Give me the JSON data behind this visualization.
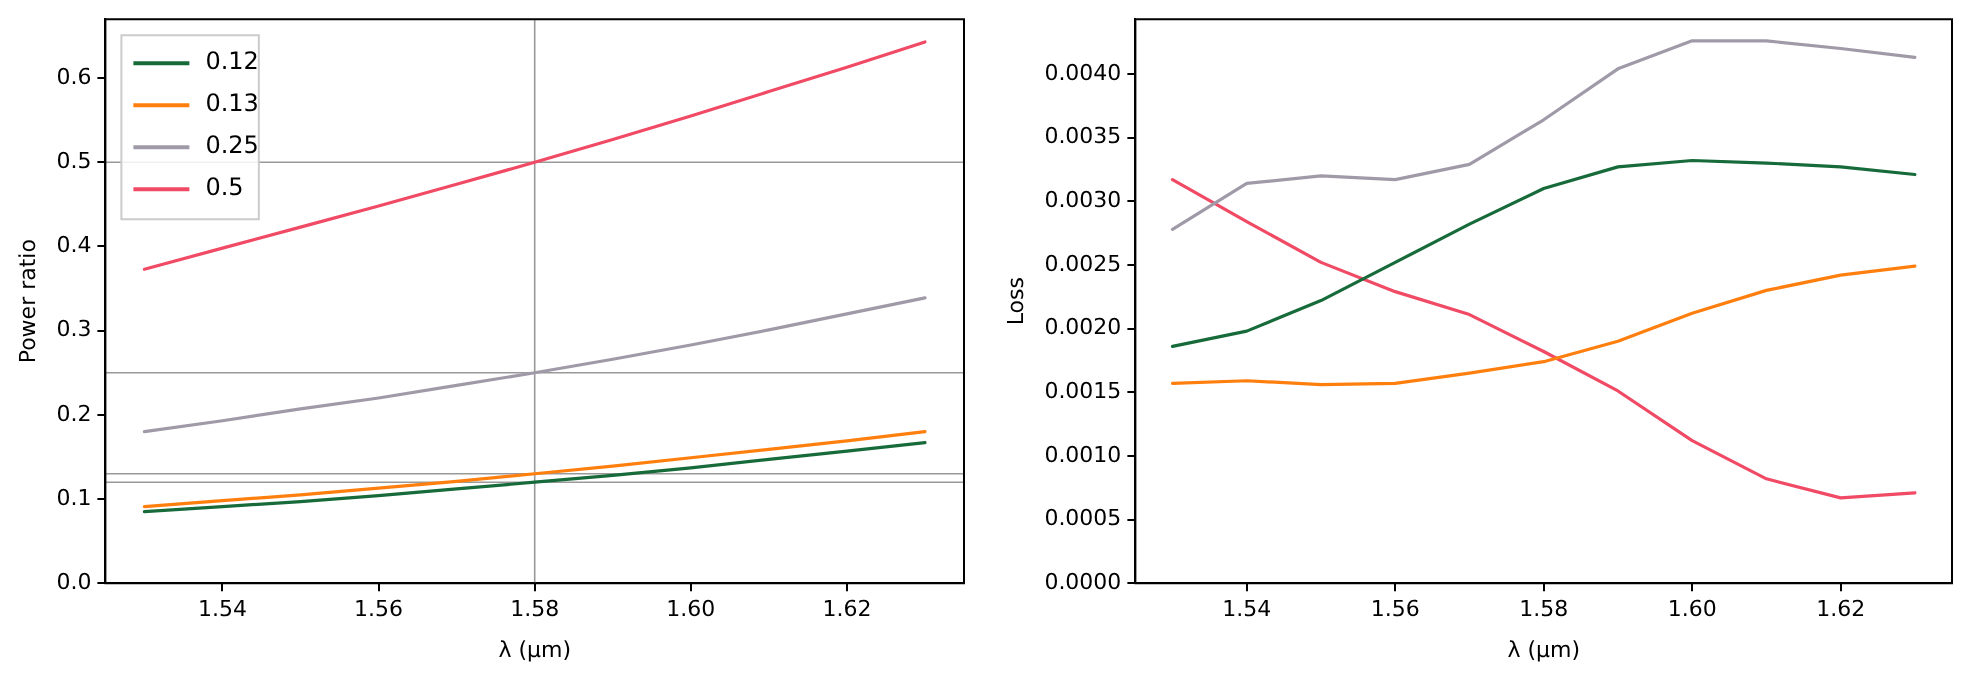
{
  "chart_data": [
    {
      "type": "line",
      "xlabel": "λ (µm)",
      "ylabel": "Power ratio",
      "x": [
        1.53,
        1.54,
        1.55,
        1.56,
        1.57,
        1.58,
        1.59,
        1.6,
        1.61,
        1.62,
        1.63
      ],
      "series": [
        {
          "name": "0.12",
          "color": "#176b3a",
          "values": [
            0.085,
            0.091,
            0.097,
            0.104,
            0.112,
            0.12,
            0.128,
            0.137,
            0.147,
            0.157,
            0.167
          ]
        },
        {
          "name": "0.13",
          "color": "#ff7f0e",
          "values": [
            0.091,
            0.098,
            0.105,
            0.113,
            0.121,
            0.13,
            0.139,
            0.149,
            0.159,
            0.169,
            0.18
          ]
        },
        {
          "name": "0.25",
          "color": "#a09aa8",
          "values": [
            0.18,
            0.193,
            0.207,
            0.22,
            0.235,
            0.25,
            0.266,
            0.283,
            0.301,
            0.32,
            0.339
          ]
        },
        {
          "name": "0.5",
          "color": "#f04a65",
          "values": [
            0.373,
            0.398,
            0.423,
            0.448,
            0.474,
            0.5,
            0.527,
            0.555,
            0.584,
            0.613,
            0.643
          ]
        }
      ],
      "xlim": [
        1.525,
        1.635
      ],
      "xticks": [
        1.54,
        1.56,
        1.58,
        {
          "value": 1.6,
          "label": "1.60"
        },
        1.62
      ],
      "ylim": [
        0,
        0.67
      ],
      "yticks": [
        {
          "value": 0,
          "label": "0.0"
        },
        0.1,
        0.2,
        0.3,
        0.4,
        0.5,
        0.6
      ],
      "ref_lines": [
        {
          "axis": "y",
          "value": 0.12,
          "color": "#999999"
        },
        {
          "axis": "y",
          "value": 0.13,
          "color": "#999999"
        },
        {
          "axis": "y",
          "value": 0.25,
          "color": "#999999"
        },
        {
          "axis": "y",
          "value": 0.5,
          "color": "#999999"
        },
        {
          "axis": "x",
          "value": 1.58,
          "color": "#999999"
        }
      ],
      "legend": "top left",
      "grid": false,
      "marker": "none",
      "line_style": "solid"
    },
    {
      "type": "line",
      "xlabel": "λ (µm)",
      "ylabel": "Loss",
      "x": [
        1.53,
        1.54,
        1.55,
        1.56,
        1.57,
        1.58,
        1.59,
        1.6,
        1.61,
        1.62,
        1.63
      ],
      "series": [
        {
          "color": "#176b3a",
          "values": [
            0.00186,
            0.00198,
            0.00222,
            0.00252,
            0.00282,
            0.0031,
            0.00327,
            0.00332,
            0.0033,
            0.00327,
            0.00321
          ]
        },
        {
          "color": "#ff7f0e",
          "values": [
            0.00157,
            0.00159,
            0.00156,
            0.00157,
            0.00165,
            0.00174,
            0.0019,
            0.00212,
            0.0023,
            0.00242,
            0.00249
          ]
        },
        {
          "color": "#a09aa8",
          "values": [
            0.00278,
            0.00314,
            0.0032,
            0.00317,
            0.00329,
            0.00364,
            0.00404,
            0.00426,
            0.00426,
            0.0042,
            0.00413
          ]
        },
        {
          "color": "#f04a65",
          "values": [
            0.00317,
            0.00284,
            0.00252,
            0.00229,
            0.00211,
            0.00182,
            0.00151,
            0.00112,
            0.00082,
            0.00067,
            0.00071
          ]
        }
      ],
      "xlim": [
        1.525,
        1.635
      ],
      "xticks": [
        1.54,
        1.56,
        1.58,
        {
          "value": 1.6,
          "label": "1.60"
        },
        1.62
      ],
      "ylim": [
        0,
        0.00443
      ],
      "yticks": [
        {
          "value": 0,
          "label": "0.0000"
        },
        0.0005,
        {
          "value": 0.001,
          "label": "0.0010"
        },
        0.0015,
        {
          "value": 0.002,
          "label": "0.0020"
        },
        0.0025,
        {
          "value": 0.003,
          "label": "0.0030"
        },
        0.0035,
        {
          "value": 0.004,
          "label": "0.0040"
        }
      ],
      "legend": false,
      "grid": false,
      "marker": "none",
      "line_style": "solid"
    }
  ]
}
